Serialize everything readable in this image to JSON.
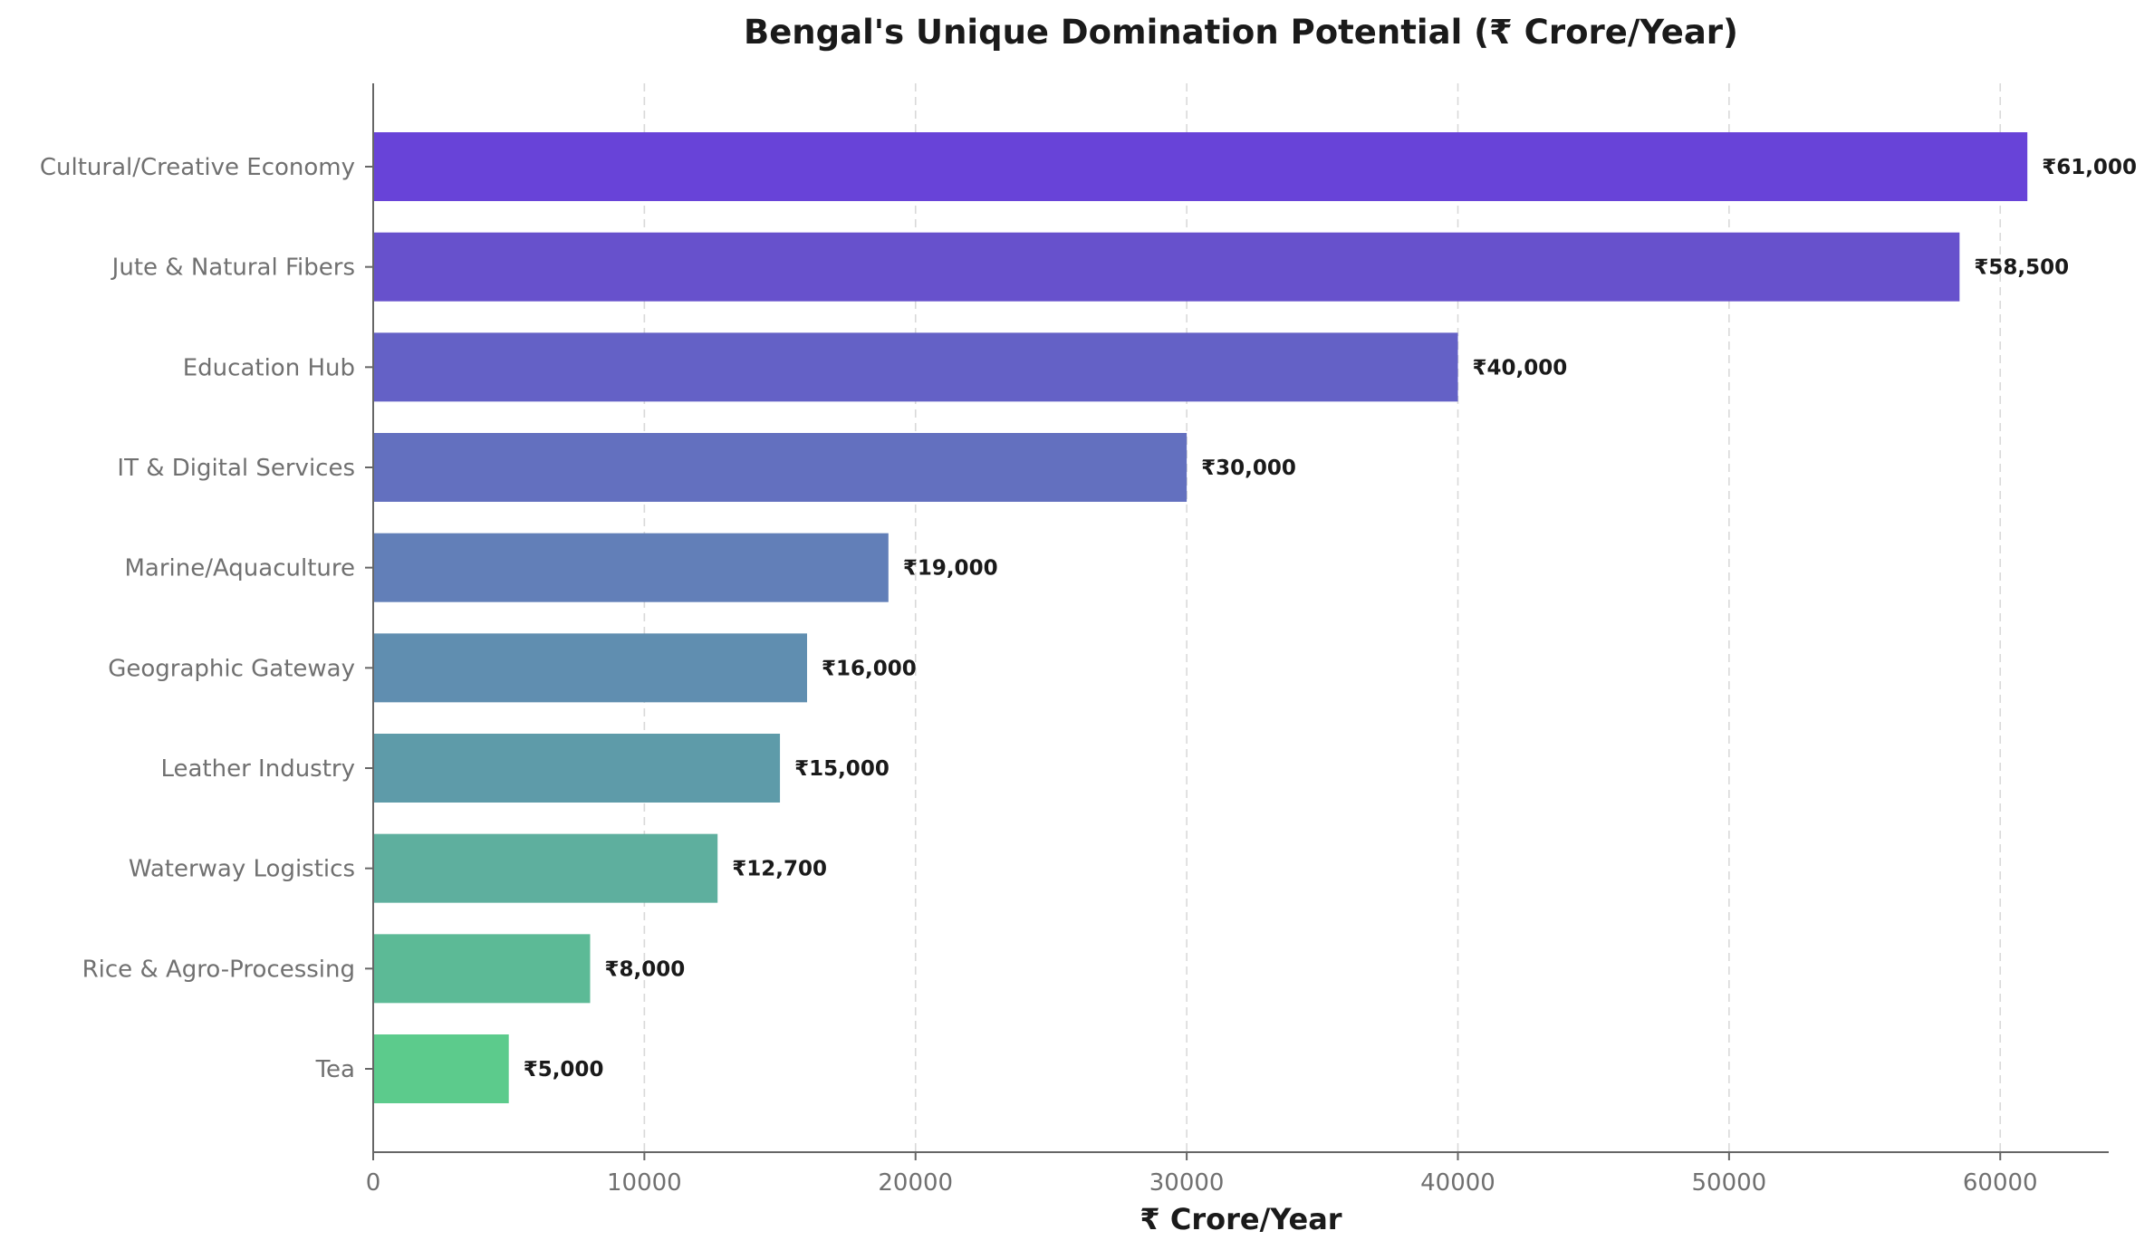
{
  "chart_data": {
    "type": "bar",
    "orientation": "horizontal",
    "title": "Bengal's Unique Domination Potential (₹ Crore/Year)",
    "xlabel": "₹ Crore/Year",
    "ylabel": "",
    "xlim": [
      0,
      64000
    ],
    "xticks": [
      0,
      10000,
      20000,
      30000,
      40000,
      50000,
      60000
    ],
    "xtick_labels": [
      "0",
      "10000",
      "20000",
      "30000",
      "40000",
      "50000",
      "60000"
    ],
    "grid": "vertical dashed",
    "categories": [
      "Cultural/Creative Economy",
      "Jute & Natural Fibers",
      "Education Hub",
      "IT & Digital Services",
      "Marine/Aquaculture",
      "Geographic Gateway",
      "Leather Industry",
      "Waterway Logistics",
      "Rice & Agro-Processing",
      "Tea"
    ],
    "values": [
      61000,
      58500,
      40000,
      30000,
      19000,
      16000,
      15000,
      12700,
      8000,
      5000
    ],
    "value_labels": [
      "₹61,000",
      "₹58,500",
      "₹40,000",
      "₹30,000",
      "₹19,000",
      "₹16,000",
      "₹15,000",
      "₹12,700",
      "₹8,000",
      "₹5,000"
    ],
    "colors": [
      "#6843d8",
      "#6751cc",
      "#6461c6",
      "#6370bf",
      "#627fb8",
      "#608eb0",
      "#5e9ba9",
      "#5eaf9e",
      "#5cba96",
      "#5ccb8c"
    ]
  }
}
